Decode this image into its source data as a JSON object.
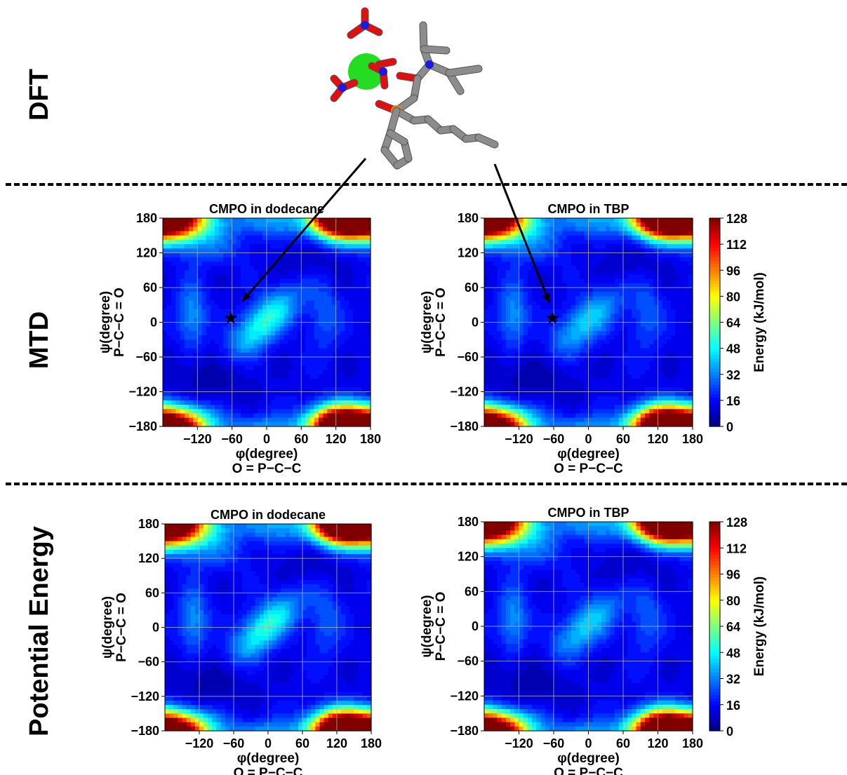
{
  "rows": [
    {
      "label": "DFT"
    },
    {
      "label": "MTD"
    },
    {
      "label": "Potential Energy"
    }
  ],
  "molecule": {
    "description": "CMPO–metal nitrate complex (stick model)"
  },
  "colorbar": {
    "label": "Energy (kJ/mol)",
    "ticks": [
      0,
      16,
      32,
      48,
      64,
      80,
      96,
      112,
      128
    ],
    "colormap": [
      "#00007f",
      "#0000ff",
      "#007fff",
      "#00ffff",
      "#7fff7f",
      "#ffff00",
      "#ff7f00",
      "#ff0000",
      "#7f0000"
    ]
  },
  "chart_data": [
    {
      "type": "heatmap",
      "row": "MTD",
      "title": "CMPO in dodecane",
      "xlabel": [
        "φ(degree)",
        "O = P−C−C"
      ],
      "ylabel": [
        "ψ(degree)",
        "P−C−C = O"
      ],
      "xlim": [
        -180,
        180
      ],
      "ylim": [
        -180,
        180
      ],
      "xticks": [
        -120,
        -60,
        0,
        60,
        120,
        180
      ],
      "yticks": [
        180,
        120,
        60,
        0,
        -60,
        -120,
        -180
      ],
      "zlim": [
        0,
        128
      ],
      "grid": true,
      "marker": {
        "shape": "star",
        "x": -62,
        "y": 7
      }
    },
    {
      "type": "heatmap",
      "row": "MTD",
      "title": "CMPO in TBP",
      "xlabel": [
        "φ(degree)",
        "O = P−C−C"
      ],
      "ylabel": [
        "ψ(degree)",
        "P−C−C = O"
      ],
      "xlim": [
        -180,
        180
      ],
      "ylim": [
        -180,
        180
      ],
      "xticks": [
        -120,
        -60,
        0,
        60,
        120,
        180
      ],
      "yticks": [
        180,
        120,
        60,
        0,
        -60,
        -120,
        -180
      ],
      "zlim": [
        0,
        128
      ],
      "grid": true,
      "marker": {
        "shape": "star",
        "x": -62,
        "y": 7
      }
    },
    {
      "type": "heatmap",
      "row": "Potential Energy",
      "title": "CMPO in dodecane",
      "xlabel": [
        "φ(degree)",
        "O = P−C−C"
      ],
      "ylabel": [
        "ψ(degree)",
        "P−C−C = O"
      ],
      "xlim": [
        -180,
        180
      ],
      "ylim": [
        -180,
        180
      ],
      "xticks": [
        -120,
        -60,
        0,
        60,
        120,
        180
      ],
      "yticks": [
        180,
        120,
        60,
        0,
        -60,
        -120,
        -180
      ],
      "zlim": [
        0,
        128
      ],
      "grid": true
    },
    {
      "type": "heatmap",
      "row": "Potential Energy",
      "title": "CMPO in TBP",
      "xlabel": [
        "φ(degree)",
        "O = P−C−C"
      ],
      "ylabel": [
        "ψ(degree)",
        "P−C−C = O"
      ],
      "xlim": [
        -180,
        180
      ],
      "ylim": [
        -180,
        180
      ],
      "xticks": [
        -120,
        -60,
        0,
        60,
        120,
        180
      ],
      "yticks": [
        180,
        120,
        60,
        0,
        -60,
        -120,
        -180
      ],
      "zlim": [
        0,
        128
      ],
      "grid": true
    }
  ]
}
